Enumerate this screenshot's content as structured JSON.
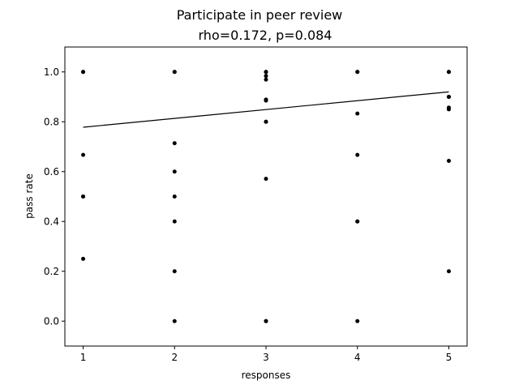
{
  "chart_data": {
    "type": "scatter",
    "title": "Participate in peer review",
    "subtitle": "rho=0.172, p=0.084",
    "xlabel": "responses",
    "ylabel": "pass rate",
    "xlim": [
      0.8,
      5.2
    ],
    "ylim": [
      -0.1,
      1.1
    ],
    "xticks": [
      1,
      2,
      3,
      4,
      5
    ],
    "xtick_labels": [
      "1",
      "2",
      "3",
      "4",
      "5"
    ],
    "yticks": [
      0.0,
      0.2,
      0.4,
      0.6,
      0.8,
      1.0
    ],
    "ytick_labels": [
      "0.0",
      "0.2",
      "0.4",
      "0.6",
      "0.8",
      "1.0"
    ],
    "grid": false,
    "points": [
      {
        "x": 1,
        "y": 1.0
      },
      {
        "x": 1,
        "y": 1.0
      },
      {
        "x": 1,
        "y": 0.667
      },
      {
        "x": 1,
        "y": 0.5
      },
      {
        "x": 1,
        "y": 0.5
      },
      {
        "x": 1,
        "y": 0.25
      },
      {
        "x": 2,
        "y": 1.0
      },
      {
        "x": 2,
        "y": 1.0
      },
      {
        "x": 2,
        "y": 0.714
      },
      {
        "x": 2,
        "y": 0.6
      },
      {
        "x": 2,
        "y": 0.5
      },
      {
        "x": 2,
        "y": 0.4
      },
      {
        "x": 2,
        "y": 0.2
      },
      {
        "x": 2,
        "y": 0.0
      },
      {
        "x": 3,
        "y": 1.0
      },
      {
        "x": 3,
        "y": 1.0
      },
      {
        "x": 3,
        "y": 0.984
      },
      {
        "x": 3,
        "y": 0.969
      },
      {
        "x": 3,
        "y": 0.889
      },
      {
        "x": 3,
        "y": 0.885
      },
      {
        "x": 3,
        "y": 0.8
      },
      {
        "x": 3,
        "y": 0.8
      },
      {
        "x": 3,
        "y": 0.571
      },
      {
        "x": 3,
        "y": 0.0
      },
      {
        "x": 3,
        "y": 0.0
      },
      {
        "x": 4,
        "y": 1.0
      },
      {
        "x": 4,
        "y": 1.0
      },
      {
        "x": 4,
        "y": 0.833
      },
      {
        "x": 4,
        "y": 0.667
      },
      {
        "x": 4,
        "y": 0.4
      },
      {
        "x": 4,
        "y": 0.4
      },
      {
        "x": 4,
        "y": 0.0
      },
      {
        "x": 5,
        "y": 1.0
      },
      {
        "x": 5,
        "y": 1.0
      },
      {
        "x": 5,
        "y": 0.9
      },
      {
        "x": 5,
        "y": 0.9
      },
      {
        "x": 5,
        "y": 0.857
      },
      {
        "x": 5,
        "y": 0.85
      },
      {
        "x": 5,
        "y": 0.643
      },
      {
        "x": 5,
        "y": 0.2
      }
    ],
    "trend_line": {
      "x": [
        1,
        5
      ],
      "y": [
        0.778,
        0.92
      ]
    },
    "colors": {
      "points": "#000000",
      "line": "#000000",
      "axes": "#000000"
    }
  }
}
